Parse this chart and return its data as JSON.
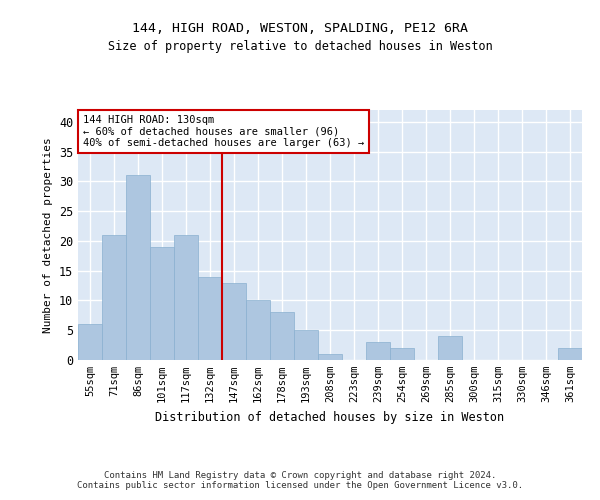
{
  "title1": "144, HIGH ROAD, WESTON, SPALDING, PE12 6RA",
  "title2": "Size of property relative to detached houses in Weston",
  "xlabel": "Distribution of detached houses by size in Weston",
  "ylabel": "Number of detached properties",
  "categories": [
    "55sqm",
    "71sqm",
    "86sqm",
    "101sqm",
    "117sqm",
    "132sqm",
    "147sqm",
    "162sqm",
    "178sqm",
    "193sqm",
    "208sqm",
    "223sqm",
    "239sqm",
    "254sqm",
    "269sqm",
    "285sqm",
    "300sqm",
    "315sqm",
    "330sqm",
    "346sqm",
    "361sqm"
  ],
  "values": [
    6,
    21,
    31,
    19,
    21,
    14,
    13,
    10,
    8,
    5,
    1,
    0,
    3,
    2,
    0,
    4,
    0,
    0,
    0,
    0,
    2
  ],
  "bar_color": "#adc6e0",
  "bar_edge_color": "#8ab0d0",
  "bg_color": "#dde8f5",
  "grid_color": "#ffffff",
  "vline_color": "#cc0000",
  "annotation_line1": "144 HIGH ROAD: 130sqm",
  "annotation_line2": "← 60% of detached houses are smaller (96)",
  "annotation_line3": "40% of semi-detached houses are larger (63) →",
  "annotation_box_edgecolor": "#cc0000",
  "footer1": "Contains HM Land Registry data © Crown copyright and database right 2024.",
  "footer2": "Contains public sector information licensed under the Open Government Licence v3.0.",
  "ylim": [
    0,
    42
  ],
  "yticks": [
    0,
    5,
    10,
    15,
    20,
    25,
    30,
    35,
    40
  ],
  "vline_bar_index": 5,
  "fig_width": 6.0,
  "fig_height": 5.0,
  "dpi": 100
}
